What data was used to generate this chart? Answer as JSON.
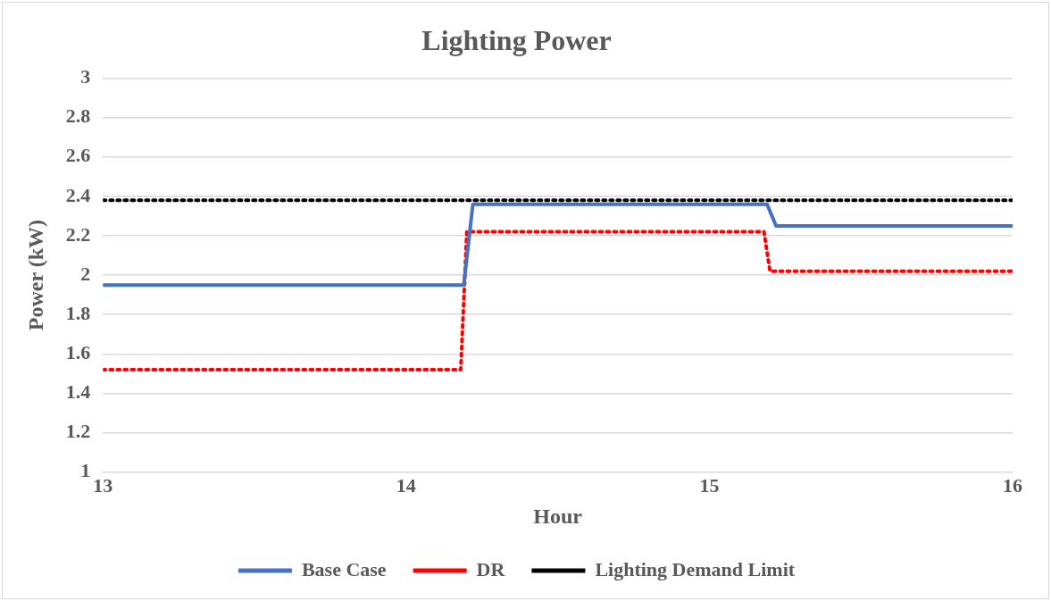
{
  "chart_data": {
    "type": "line",
    "title": "Lighting Power",
    "xlabel": "Hour",
    "ylabel": "Power (kW)",
    "xlim": [
      13,
      16
    ],
    "xticks": [
      13,
      14,
      15,
      16
    ],
    "ylim": [
      1,
      3
    ],
    "yticks": [
      1,
      1.2,
      1.4,
      1.6,
      1.8,
      2,
      2.2,
      2.4,
      2.6,
      2.8,
      3
    ],
    "grid": "y",
    "legend": "bottom",
    "marker": "none",
    "series": [
      {
        "name": "Base Case",
        "color": "#4472c4",
        "line_style": "solid",
        "x": [
          13,
          14.19,
          14.22,
          15.19,
          15.22,
          16
        ],
        "values": [
          1.95,
          1.95,
          2.36,
          2.36,
          2.25,
          2.25
        ]
      },
      {
        "name": "DR",
        "color": "#ff0000",
        "line_style": "dotted",
        "x": [
          13,
          14.18,
          14.2,
          15.18,
          15.2,
          16
        ],
        "values": [
          1.52,
          1.52,
          2.22,
          2.22,
          2.02,
          2.02
        ]
      },
      {
        "name": "Lighting Demand Limit",
        "color": "#000000",
        "line_style": "dotted",
        "x": [
          13,
          16
        ],
        "values": [
          2.38,
          2.38
        ]
      }
    ]
  }
}
